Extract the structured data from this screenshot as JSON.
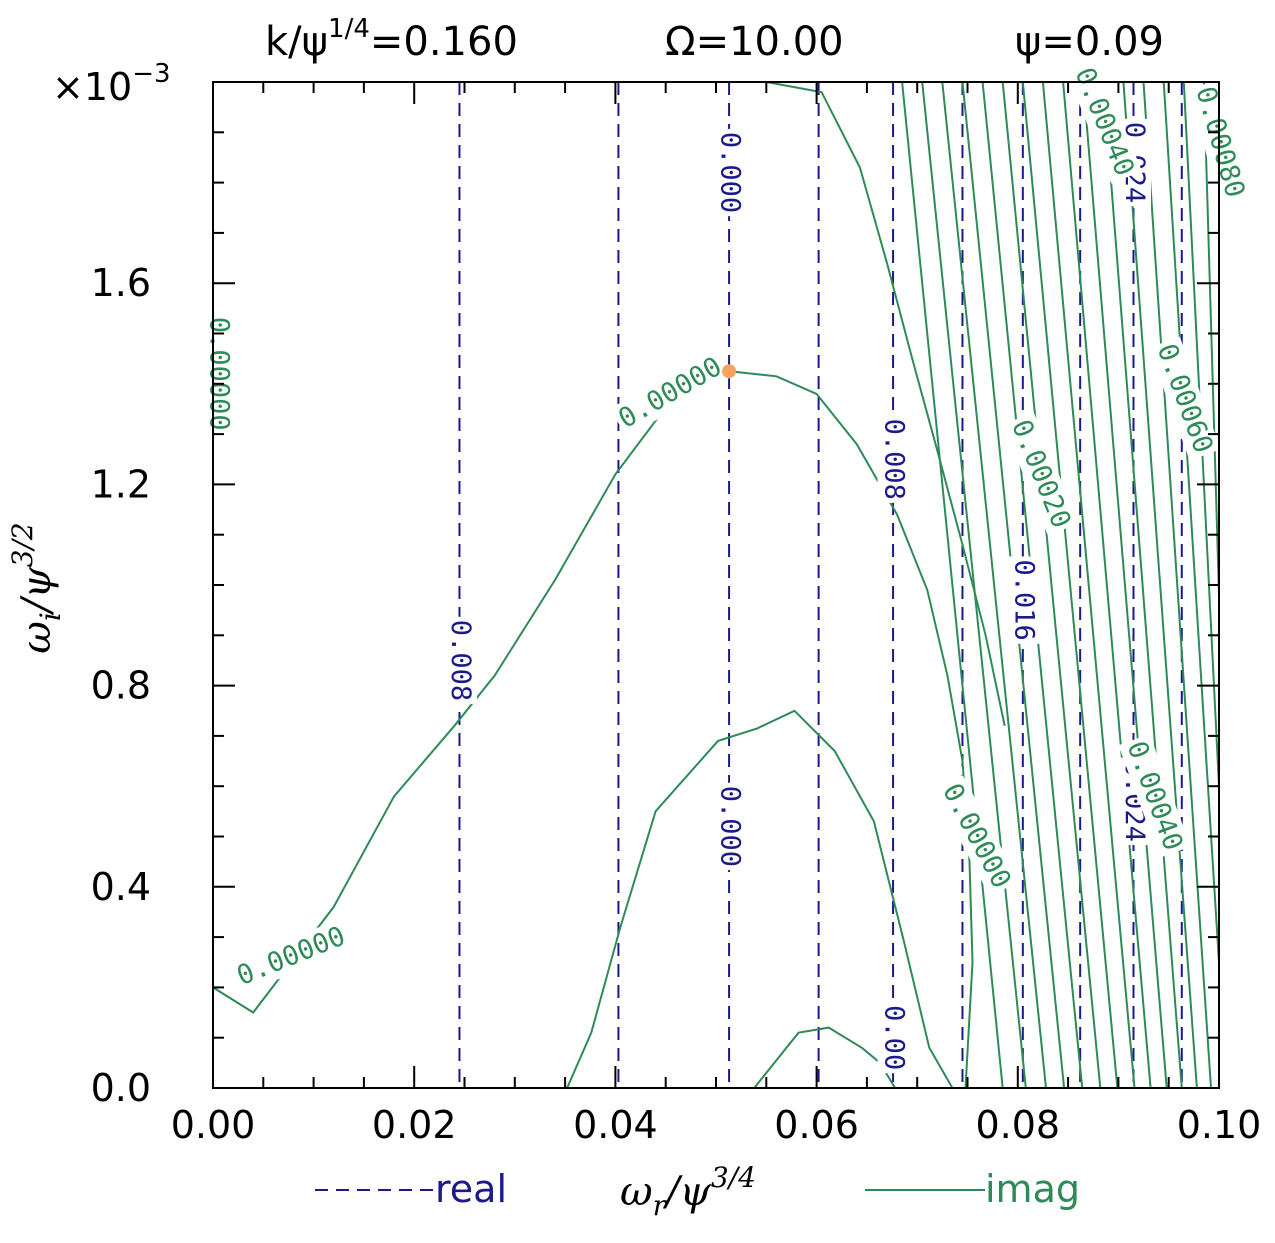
{
  "colors": {
    "real": "#1a1a8c",
    "imag": "#2e8b57",
    "marker": "#f4a460",
    "axis": "#000000"
  },
  "title": {
    "left": "k/ψ",
    "left_sup": "1/4",
    "left_value": "=0.160",
    "middle": "Ω=10.00",
    "right": "ψ=0.09"
  },
  "chart_data": {
    "type": "line",
    "subtype": "contour",
    "x_range": [
      0.0,
      0.1
    ],
    "y_range": [
      0.0,
      0.002
    ],
    "y_multiplier_label": "×10",
    "y_multiplier_exp": "−3",
    "x_ticks": [
      "0.00",
      "0.02",
      "0.04",
      "0.06",
      "0.08",
      "0.10"
    ],
    "x_tick_values": [
      0.0,
      0.02,
      0.04,
      0.06,
      0.08,
      0.1
    ],
    "y_ticks": [
      "0.0",
      "0.4",
      "0.8",
      "1.2",
      "1.6"
    ],
    "y_tick_values": [
      0.0,
      0.0004,
      0.0008,
      0.0012,
      0.0016
    ],
    "xlabel": {
      "base": "ω",
      "sub": "r",
      "mid": "/ψ",
      "sup": "3/4"
    },
    "ylabel": {
      "base": "ω",
      "sub": "i",
      "mid": "/ψ",
      "sup": "3/2"
    },
    "legend": {
      "real_label": "real",
      "imag_label": "imag",
      "placement": "bottom"
    },
    "real_contours_x": [
      0.0245,
      0.0403,
      0.0513,
      0.0602,
      0.0676,
      0.0745,
      0.0805,
      0.0862,
      0.0915,
      0.0963
    ],
    "real_labels": [
      {
        "text": "0.008",
        "x": 0.0245,
        "y": 0.00085
      },
      {
        "text": "0.000",
        "x": 0.0513,
        "y": 0.00182
      },
      {
        "text": "0.008",
        "x": 0.0676,
        "y": 0.00125
      },
      {
        "text": "0.016",
        "x": 0.0805,
        "y": 0.00097
      },
      {
        "text": "0.024",
        "x": 0.0915,
        "y": 0.00184
      },
      {
        "text": "0.000",
        "x": 0.0513,
        "y": 0.00052
      },
      {
        "text": "0.024",
        "x": 0.0915,
        "y": 0.00057
      },
      {
        "text": "0.00",
        "x": 0.0676,
        "y": 0.0001
      }
    ],
    "imag_contours": [
      {
        "name": "0.00000 main",
        "points": [
          [
            0.0,
            0.0002
          ],
          [
            0.004,
            0.00015
          ],
          [
            0.012,
            0.00036
          ],
          [
            0.018,
            0.00058
          ],
          [
            0.024,
            0.00072
          ],
          [
            0.028,
            0.00082
          ],
          [
            0.034,
            0.00101
          ],
          [
            0.04,
            0.00122
          ],
          [
            0.046,
            0.00138
          ],
          [
            0.0513,
            0.001425
          ],
          [
            0.056,
            0.001415
          ],
          [
            0.06,
            0.00138
          ],
          [
            0.064,
            0.00128
          ],
          [
            0.068,
            0.00114
          ],
          [
            0.071,
            0.00099
          ],
          [
            0.073,
            0.00082
          ],
          [
            0.0745,
            0.00065
          ],
          [
            0.0752,
            0.00045
          ],
          [
            0.0755,
            0.00025
          ],
          [
            0.0748,
            0.0
          ]
        ]
      },
      {
        "name": "inner arch",
        "points": [
          [
            0.0352,
            0.0
          ],
          [
            0.0376,
            0.00011
          ],
          [
            0.0405,
            0.00032
          ],
          [
            0.044,
            0.00055
          ],
          [
            0.0502,
            0.00069
          ],
          [
            0.0541,
            0.000715
          ],
          [
            0.0578,
            0.00075
          ],
          [
            0.0618,
            0.00067
          ],
          [
            0.0657,
            0.00053
          ],
          [
            0.0687,
            0.00029
          ],
          [
            0.0712,
            8e-05
          ],
          [
            0.0735,
            0.0
          ]
        ]
      },
      {
        "name": "small arch",
        "points": [
          [
            0.0538,
            0.0
          ],
          [
            0.0582,
            0.00011
          ],
          [
            0.0612,
            0.00012
          ],
          [
            0.0645,
            8e-05
          ],
          [
            0.0663,
            5e-05
          ],
          [
            0.0678,
            0.0
          ]
        ]
      },
      {
        "name": "upper left",
        "points": [
          [
            0.055,
            0.002
          ],
          [
            0.0605,
            0.00198
          ],
          [
            0.0643,
            0.00183
          ],
          [
            0.067,
            0.00164
          ],
          [
            0.0695,
            0.00145
          ],
          [
            0.0721,
            0.00126
          ],
          [
            0.0745,
            0.00108
          ],
          [
            0.0768,
            0.0009
          ],
          [
            0.0787,
            0.00072
          ]
        ]
      },
      {
        "name": "c1",
        "points": [
          [
            0.0685,
            0.002
          ],
          [
            0.0785,
            0.0
          ]
        ]
      },
      {
        "name": "c2",
        "points": [
          [
            0.0705,
            0.002
          ],
          [
            0.0808,
            0.0
          ]
        ]
      },
      {
        "name": "c3",
        "points": [
          [
            0.0725,
            0.002
          ],
          [
            0.0828,
            0.0
          ]
        ]
      },
      {
        "name": "c4",
        "points": [
          [
            0.0745,
            0.002
          ],
          [
            0.0846,
            0.0
          ]
        ]
      },
      {
        "name": "c5",
        "points": [
          [
            0.0765,
            0.002
          ],
          [
            0.0864,
            0.0
          ]
        ]
      },
      {
        "name": "c6",
        "points": [
          [
            0.0785,
            0.002
          ],
          [
            0.0882,
            0.0
          ]
        ]
      },
      {
        "name": "c7",
        "points": [
          [
            0.0805,
            0.002
          ],
          [
            0.0899,
            0.0
          ]
        ]
      },
      {
        "name": "c8",
        "points": [
          [
            0.0825,
            0.002
          ],
          [
            0.0916,
            0.0
          ]
        ]
      },
      {
        "name": "c9",
        "points": [
          [
            0.0845,
            0.002
          ],
          [
            0.0932,
            0.0
          ]
        ]
      },
      {
        "name": "c10",
        "points": [
          [
            0.0865,
            0.002
          ],
          [
            0.0948,
            0.0
          ]
        ]
      },
      {
        "name": "c11",
        "points": [
          [
            0.0885,
            0.002
          ],
          [
            0.0963,
            0.0
          ]
        ]
      },
      {
        "name": "c12",
        "points": [
          [
            0.0905,
            0.002
          ],
          [
            0.0978,
            0.0
          ]
        ]
      },
      {
        "name": "c13",
        "points": [
          [
            0.0925,
            0.002
          ],
          [
            0.0992,
            0.0
          ]
        ]
      },
      {
        "name": "c14",
        "points": [
          [
            0.0945,
            0.002
          ],
          [
            0.1,
            0.00025
          ]
        ]
      },
      {
        "name": "c15",
        "points": [
          [
            0.0965,
            0.002
          ],
          [
            0.1,
            0.0006
          ]
        ]
      },
      {
        "name": "c16",
        "points": [
          [
            0.0985,
            0.002
          ],
          [
            0.1,
            0.00098
          ]
        ]
      }
    ],
    "imag_labels": [
      {
        "text": "0.00000",
        "x": 0.0005,
        "y": 0.00142
      },
      {
        "text": "0.00000",
        "x": 0.0078,
        "y": 0.00026
      },
      {
        "text": "0.00000",
        "x": 0.0455,
        "y": 0.00138
      },
      {
        "text": "0.00000",
        "x": 0.0758,
        "y": 0.0005
      },
      {
        "text": "0.00020",
        "x": 0.0822,
        "y": 0.00122
      },
      {
        "text": "0.00040",
        "x": 0.0885,
        "y": 0.00192
      },
      {
        "text": "0.00040",
        "x": 0.0935,
        "y": 0.00058
      },
      {
        "text": "0.00060",
        "x": 0.0965,
        "y": 0.00137
      },
      {
        "text": "0.00080",
        "x": 0.1,
        "y": 0.00188
      }
    ],
    "marker": {
      "x": 0.0513,
      "y": 0.001425
    }
  }
}
